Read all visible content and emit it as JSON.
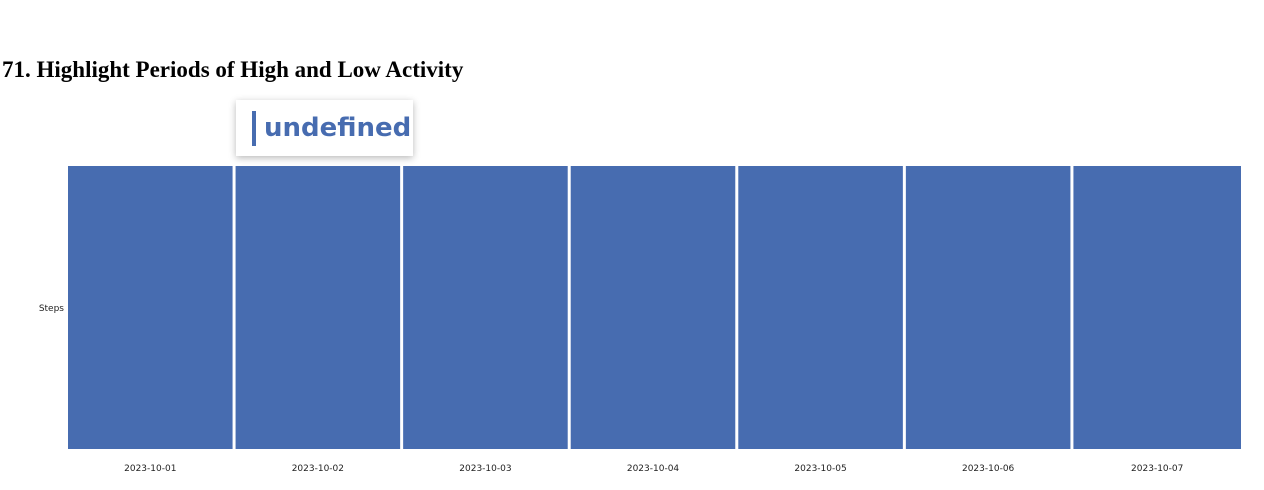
{
  "page": {
    "title": "71. Highlight Periods of High and Low Activity"
  },
  "tooltip": {
    "text": "undefined"
  },
  "colors": {
    "bar": "#476cb0",
    "accent": "#476cb0"
  },
  "chart_data": {
    "type": "bar",
    "title": "",
    "xlabel": "",
    "ylabel": "Steps",
    "categories": [
      "2023-10-01",
      "2023-10-02",
      "2023-10-03",
      "2023-10-04",
      "2023-10-05",
      "2023-10-06",
      "2023-10-07"
    ],
    "series": [
      {
        "values": [
          1,
          1,
          1,
          1,
          1,
          1,
          1
        ]
      }
    ],
    "ylim": [
      0,
      1
    ],
    "grid": false,
    "legend": "none"
  }
}
